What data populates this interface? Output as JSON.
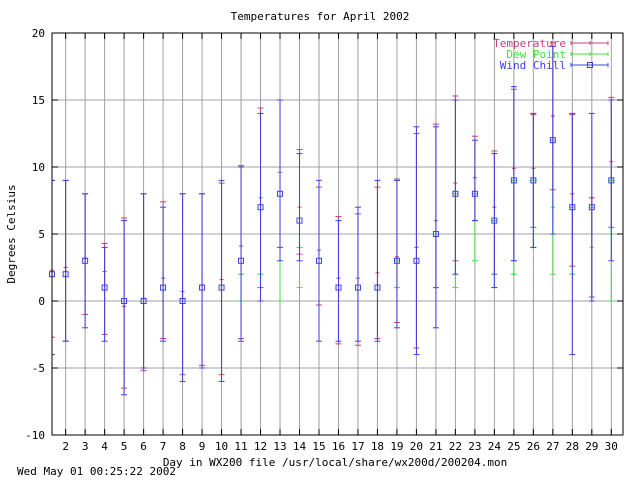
{
  "chart_data": {
    "type": "errorbar",
    "title": "Temperatures for April 2002",
    "xlabel": "Day in WX200 file /usr/local/share/wx200d/200204.mon",
    "ylabel": "Degrees Celsius",
    "ylim": [
      -10,
      20
    ],
    "yticks": [
      -10,
      -5,
      0,
      5,
      10,
      15,
      20
    ],
    "xlim": [
      1.3,
      30.6
    ],
    "xticks": [
      2,
      3,
      4,
      5,
      6,
      7,
      8,
      9,
      10,
      11,
      12,
      13,
      14,
      15,
      16,
      17,
      18,
      19,
      20,
      21,
      22,
      23,
      24,
      25,
      26,
      27,
      28,
      29,
      30
    ],
    "grid": true,
    "legend_position": "top-right",
    "series": [
      {
        "name": "Temperature",
        "color": "#c04080",
        "marker": "plus",
        "points": [
          {
            "x": 1.3,
            "y": 2.3,
            "low": -2.7,
            "high": 9.0
          },
          {
            "x": 2.0,
            "y": 2.5,
            "low": -3.0,
            "high": 9.0
          },
          {
            "x": 3.0,
            "y": 3.2,
            "low": -1.0,
            "high": 8.0
          },
          {
            "x": 4.0,
            "y": 2.2,
            "low": -2.5,
            "high": 4.3
          },
          {
            "x": 5.0,
            "y": -0.4,
            "low": -6.5,
            "high": 6.2
          },
          {
            "x": 6.0,
            "y": 0.2,
            "low": -5.2,
            "high": 8.0
          },
          {
            "x": 7.0,
            "y": 1.7,
            "low": -2.8,
            "high": 7.4
          },
          {
            "x": 8.0,
            "y": 0.7,
            "low": -5.5,
            "high": 8.0
          },
          {
            "x": 9.0,
            "y": 1.2,
            "low": -4.8,
            "high": 8.0
          },
          {
            "x": 10.0,
            "y": 1.6,
            "low": -5.5,
            "high": 8.8
          },
          {
            "x": 11.0,
            "y": 4.1,
            "low": -2.8,
            "high": 10.1
          },
          {
            "x": 12.0,
            "y": 7.7,
            "low": 1.0,
            "high": 14.4
          },
          {
            "x": 13.0,
            "y": 9.6,
            "low": 4.0,
            "high": 15.0
          },
          {
            "x": 14.0,
            "y": 7.0,
            "low": 3.5,
            "high": 11.3
          },
          {
            "x": 15.0,
            "y": 3.8,
            "low": -0.3,
            "high": 8.5
          },
          {
            "x": 16.0,
            "y": 1.7,
            "low": -3.2,
            "high": 6.3
          },
          {
            "x": 17.0,
            "y": 1.7,
            "low": -3.3,
            "high": 6.5
          },
          {
            "x": 18.0,
            "y": 2.1,
            "low": -2.8,
            "high": 8.5
          },
          {
            "x": 19.0,
            "y": 3.3,
            "low": -1.6,
            "high": 9.1
          },
          {
            "x": 20.0,
            "y": 4.0,
            "low": -3.5,
            "high": 12.5
          },
          {
            "x": 21.0,
            "y": 6.0,
            "low": 1.0,
            "high": 13.2
          },
          {
            "x": 22.0,
            "y": 8.8,
            "low": 3.0,
            "high": 15.3
          },
          {
            "x": 23.0,
            "y": 9.2,
            "low": 6.0,
            "high": 12.3
          },
          {
            "x": 24.0,
            "y": 7.0,
            "low": 2.0,
            "high": 11.2
          },
          {
            "x": 25.0,
            "y": 9.9,
            "low": 3.0,
            "high": 15.8
          },
          {
            "x": 26.0,
            "y": 9.9,
            "low": 5.5,
            "high": 13.9
          },
          {
            "x": 27.0,
            "y": 13.8,
            "low": 8.3,
            "high": 19.3
          },
          {
            "x": 28.0,
            "y": 8.0,
            "low": 2.6,
            "high": 13.9
          },
          {
            "x": 29.0,
            "y": 7.7,
            "low": 0.3,
            "high": 7.7
          },
          {
            "x": 30.0,
            "y": 10.4,
            "low": 5.5,
            "high": 15.2
          }
        ]
      },
      {
        "name": "Dew Point",
        "color": "#40e040",
        "marker": "plus",
        "points": [
          {
            "x": 11.0,
            "y": 2.0,
            "low": 0.0,
            "high": 2.0
          },
          {
            "x": 12.0,
            "y": 2.0,
            "low": 0.0,
            "high": 2.0
          },
          {
            "x": 13.0,
            "y": 4.0,
            "low": 0.0,
            "high": 4.0
          },
          {
            "x": 14.0,
            "y": 4.0,
            "low": 1.0,
            "high": 4.0
          },
          {
            "x": 19.0,
            "y": 1.0,
            "low": 1.0,
            "high": 3.0
          },
          {
            "x": 21.0,
            "y": 1.0,
            "low": 1.0,
            "high": 5.0
          },
          {
            "x": 22.0,
            "y": 2.0,
            "low": 1.0,
            "high": 8.0
          },
          {
            "x": 23.0,
            "y": 6.0,
            "low": 3.0,
            "high": 8.0
          },
          {
            "x": 24.0,
            "y": 2.0,
            "low": 1.0,
            "high": 6.0
          },
          {
            "x": 25.0,
            "y": 2.0,
            "low": 2.0,
            "high": 9.0
          },
          {
            "x": 26.0,
            "y": 4.0,
            "low": 4.0,
            "high": 9.0
          },
          {
            "x": 27.0,
            "y": 7.0,
            "low": 2.0,
            "high": 12.0
          },
          {
            "x": 28.0,
            "y": 2.0,
            "low": 2.0,
            "high": 7.0
          },
          {
            "x": 29.0,
            "y": 4.0,
            "low": 0.0,
            "high": 7.0
          },
          {
            "x": 30.0,
            "y": 5.0,
            "low": 0.0,
            "high": 9.0
          }
        ]
      },
      {
        "name": "Wind Chill",
        "color": "#4040e0",
        "marker": "square",
        "points": [
          {
            "x": 1.3,
            "y": 2.0,
            "low": -4.0,
            "high": 9.0
          },
          {
            "x": 2.0,
            "y": 2.0,
            "low": -3.0,
            "high": 9.0
          },
          {
            "x": 3.0,
            "y": 3.0,
            "low": -2.0,
            "high": 8.0
          },
          {
            "x": 4.0,
            "y": 1.0,
            "low": -3.0,
            "high": 4.0
          },
          {
            "x": 5.0,
            "y": 0.0,
            "low": -7.0,
            "high": 6.0
          },
          {
            "x": 6.0,
            "y": 0.0,
            "low": -5.0,
            "high": 8.0
          },
          {
            "x": 7.0,
            "y": 1.0,
            "low": -3.0,
            "high": 7.0
          },
          {
            "x": 8.0,
            "y": 0.0,
            "low": -6.0,
            "high": 8.0
          },
          {
            "x": 9.0,
            "y": 1.0,
            "low": -5.0,
            "high": 8.0
          },
          {
            "x": 10.0,
            "y": 1.0,
            "low": -6.0,
            "high": 9.0
          },
          {
            "x": 11.0,
            "y": 3.0,
            "low": -3.0,
            "high": 10.0
          },
          {
            "x": 12.0,
            "y": 7.0,
            "low": 0.0,
            "high": 14.0
          },
          {
            "x": 13.0,
            "y": 8.0,
            "low": 3.0,
            "high": 15.0
          },
          {
            "x": 14.0,
            "y": 6.0,
            "low": 3.0,
            "high": 11.0
          },
          {
            "x": 15.0,
            "y": 3.0,
            "low": -3.0,
            "high": 9.0
          },
          {
            "x": 16.0,
            "y": 1.0,
            "low": -3.0,
            "high": 6.0
          },
          {
            "x": 17.0,
            "y": 1.0,
            "low": -3.0,
            "high": 7.0
          },
          {
            "x": 18.0,
            "y": 1.0,
            "low": -3.0,
            "high": 9.0
          },
          {
            "x": 19.0,
            "y": 3.0,
            "low": -2.0,
            "high": 9.0
          },
          {
            "x": 20.0,
            "y": 3.0,
            "low": -4.0,
            "high": 13.0
          },
          {
            "x": 21.0,
            "y": 5.0,
            "low": -2.0,
            "high": 13.0
          },
          {
            "x": 22.0,
            "y": 8.0,
            "low": 2.0,
            "high": 15.0
          },
          {
            "x": 23.0,
            "y": 8.0,
            "low": 6.0,
            "high": 12.0
          },
          {
            "x": 24.0,
            "y": 6.0,
            "low": 1.0,
            "high": 11.0
          },
          {
            "x": 25.0,
            "y": 9.0,
            "low": 3.0,
            "high": 16.0
          },
          {
            "x": 26.0,
            "y": 9.0,
            "low": 4.0,
            "high": 14.0
          },
          {
            "x": 27.0,
            "y": 12.0,
            "low": 5.0,
            "high": 19.0
          },
          {
            "x": 28.0,
            "y": 7.0,
            "low": -4.0,
            "high": 14.0
          },
          {
            "x": 29.0,
            "y": 7.0,
            "low": 0.0,
            "high": 14.0
          },
          {
            "x": 30.0,
            "y": 9.0,
            "low": 3.0,
            "high": 15.0
          }
        ]
      }
    ]
  },
  "footer_timestamp": "Wed May 01 00:25:22 2002"
}
